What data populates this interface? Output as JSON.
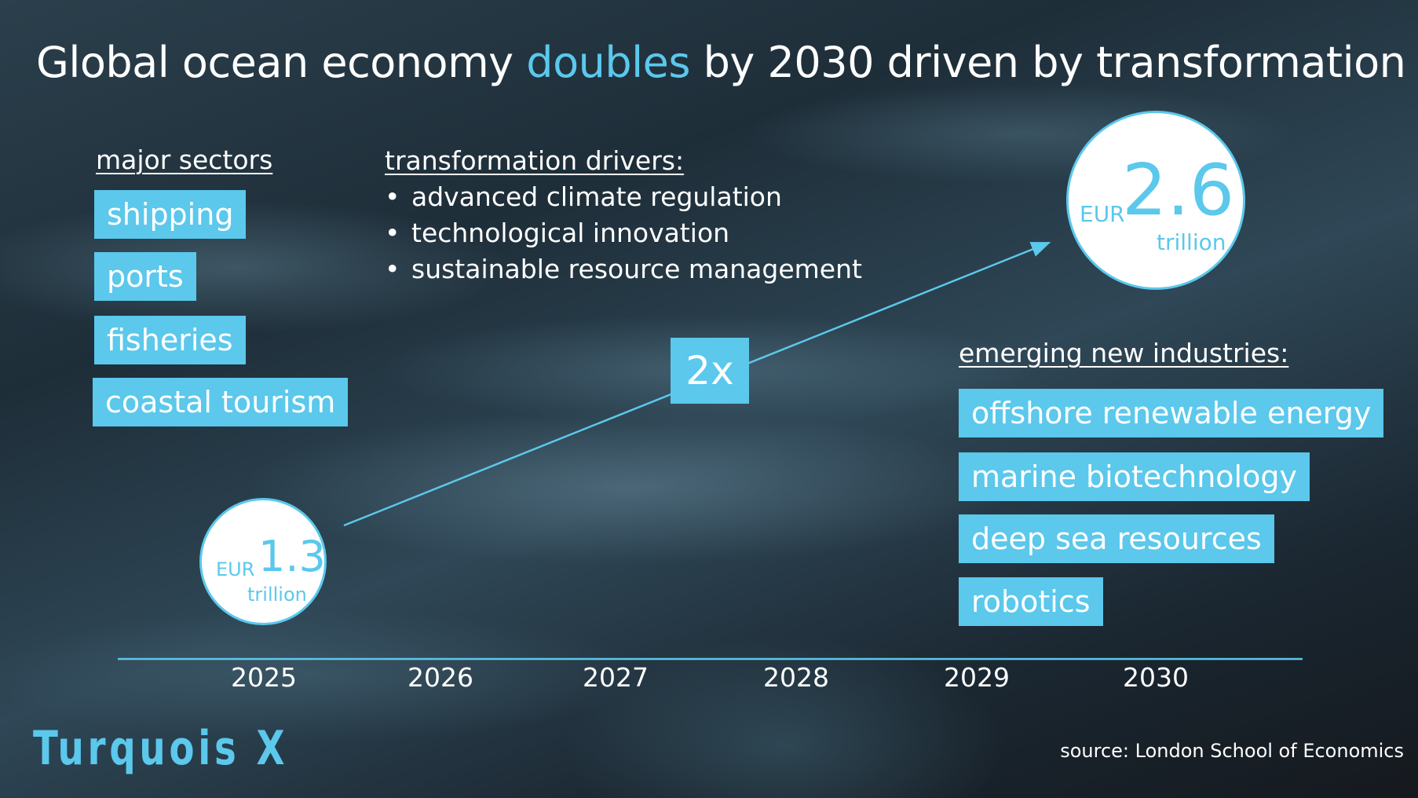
{
  "title": {
    "part1": "Global ocean economy ",
    "highlight": "doubles",
    "part2": " by 2030 driven by transformation"
  },
  "major_sectors": {
    "heading": "major sectors",
    "items": [
      "shipping",
      "ports",
      "fisheries",
      "coastal tourism"
    ]
  },
  "drivers": {
    "heading": "transformation drivers:",
    "items": [
      "advanced climate regulation",
      "technological innovation",
      "sustainable resource management"
    ]
  },
  "start_value": {
    "currency": "EUR",
    "amount": "1.3",
    "unit": "trillion",
    "year": "2025"
  },
  "end_value": {
    "currency": "EUR",
    "amount": "2.6",
    "unit": "trillion",
    "year": "2030"
  },
  "growth_label": "2x",
  "emerging": {
    "heading": "emerging new industries:",
    "items": [
      "offshore renewable energy",
      "marine biotechnology",
      "deep sea resources",
      "robotics"
    ]
  },
  "timeline": {
    "years": [
      "2025",
      "2026",
      "2027",
      "2028",
      "2029",
      "2030"
    ]
  },
  "brand": "Turquois X",
  "source": "source: London School of Economics",
  "colors": {
    "accent": "#5bc8ec",
    "text": "#ffffff"
  }
}
